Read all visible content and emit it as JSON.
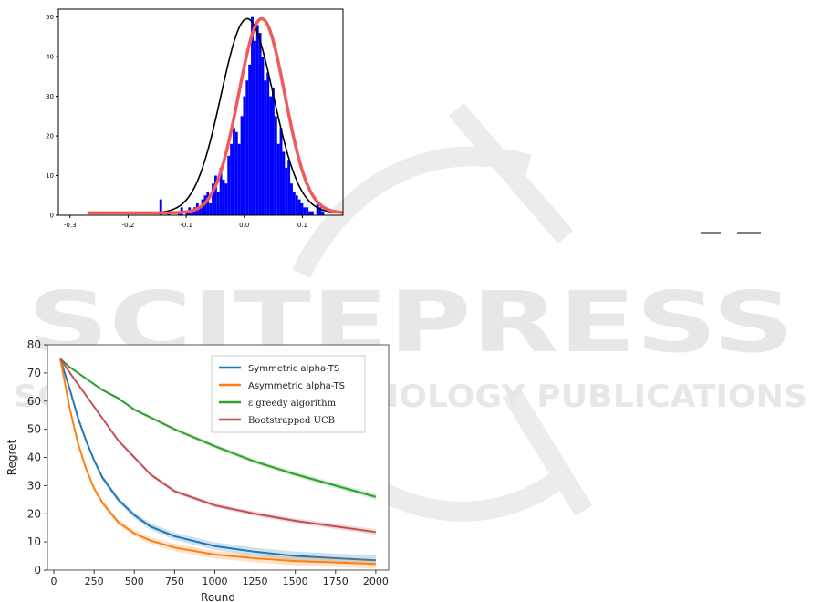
{
  "watermark": {
    "title": "SCITEPRESS",
    "subtitle": "SCIENCE AND TECHNOLOGY PUBLICATIONS",
    "color": "#e9e9e9"
  },
  "chart_data": [
    {
      "type": "histogram",
      "title": "",
      "xlabel": "",
      "ylabel": "",
      "xlim": [
        -0.32,
        0.17
      ],
      "ylim": [
        0,
        52
      ],
      "xticks": [
        -0.3,
        -0.2,
        -0.1,
        0.0,
        0.1
      ],
      "xtick_labels": [
        "-0.3",
        "-0.2",
        "-0.1",
        "0.0",
        "0.1"
      ],
      "yticks": [
        0,
        10,
        20,
        30,
        40,
        50
      ],
      "ytick_labels": [
        "0",
        "10",
        "20",
        "30",
        "40",
        "50"
      ],
      "bar_color": "#0000ff",
      "bins": {
        "start": -0.2,
        "width": 0.0045,
        "counts": [
          0,
          0,
          0,
          0,
          0,
          0,
          0,
          0,
          0,
          0,
          0,
          0,
          4,
          0,
          0,
          1,
          0,
          0,
          0,
          1,
          2,
          0,
          1,
          2,
          1,
          2,
          3,
          2,
          4,
          5,
          6,
          3,
          8,
          10,
          6,
          12,
          9,
          8,
          15,
          18,
          22,
          21,
          18,
          25,
          30,
          34,
          38,
          50,
          44,
          48,
          46,
          40,
          34,
          36,
          30,
          32,
          25,
          18,
          22,
          16,
          12,
          14,
          8,
          6,
          5,
          4,
          3,
          2,
          2,
          1,
          1,
          0,
          3,
          2,
          1,
          0,
          0
        ]
      },
      "series": [
        {
          "name": "",
          "color": "#000000",
          "kind": "density",
          "mu": 0.005,
          "sigma": 0.045,
          "peak": 49
        },
        {
          "name": "",
          "color": "#f05a5a",
          "kind": "density",
          "mu": 0.03,
          "sigma": 0.04,
          "peak": 49
        }
      ]
    },
    {
      "type": "line",
      "title": "",
      "xlabel": "Round",
      "ylabel": "Regret",
      "xlim": [
        -40,
        2080
      ],
      "ylim": [
        0,
        80
      ],
      "xticks": [
        0,
        250,
        500,
        750,
        1000,
        1250,
        1500,
        1750,
        2000
      ],
      "xtick_labels": [
        "0",
        "250",
        "500",
        "750",
        "1000",
        "1250",
        "1500",
        "1750",
        "2000"
      ],
      "yticks": [
        0,
        10,
        20,
        30,
        40,
        50,
        60,
        70,
        80
      ],
      "ytick_labels": [
        "0",
        "10",
        "20",
        "30",
        "40",
        "50",
        "60",
        "70",
        "80"
      ],
      "legend_position": "top-right",
      "series": [
        {
          "name": "Symmetric alpha-TS",
          "color": "#1f77b4",
          "x": [
            40,
            100,
            150,
            200,
            250,
            300,
            400,
            500,
            600,
            750,
            1000,
            1250,
            1500,
            1750,
            2000
          ],
          "y": [
            75,
            64,
            54,
            46,
            39,
            33,
            25,
            19.5,
            15.5,
            12,
            8.5,
            6.5,
            5,
            4.2,
            3.5
          ]
        },
        {
          "name": "Asymmetric alpha-TS",
          "color": "#ff7f0e",
          "x": [
            40,
            100,
            150,
            200,
            250,
            300,
            400,
            500,
            600,
            750,
            1000,
            1250,
            1500,
            1750,
            2000
          ],
          "y": [
            75,
            57,
            45,
            36,
            29,
            24,
            17,
            13,
            10.5,
            8,
            5.5,
            4.2,
            3.2,
            2.7,
            2.2
          ]
        },
        {
          "name": "ε greedy algorithm",
          "color": "#2ca02c",
          "x": [
            40,
            100,
            200,
            300,
            400,
            500,
            750,
            1000,
            1250,
            1500,
            1750,
            2000
          ],
          "y": [
            75,
            72,
            68,
            64,
            61,
            57,
            50,
            44,
            38.5,
            34,
            30,
            26
          ]
        },
        {
          "name": "Bootstrapped UCB",
          "color": "#c44e52",
          "x": [
            40,
            100,
            200,
            300,
            400,
            500,
            600,
            750,
            1000,
            1250,
            1500,
            1750,
            2000
          ],
          "y": [
            75,
            70,
            62,
            54,
            46,
            40,
            34,
            28,
            23,
            20,
            17.5,
            15.5,
            13.5
          ]
        }
      ]
    }
  ]
}
